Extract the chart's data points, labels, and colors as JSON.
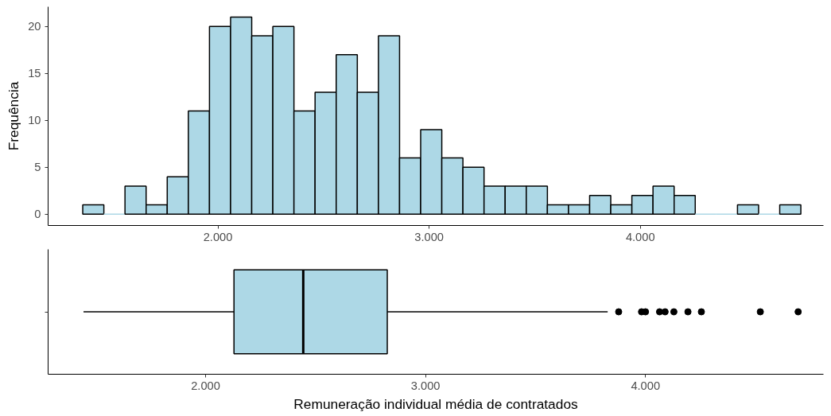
{
  "chart_data": [
    {
      "type": "histogram",
      "ylabel": "Frequência",
      "color": "#add8e6",
      "bins": [
        1360,
        1460,
        1560,
        1660,
        1760,
        1860,
        1960,
        2060,
        2160,
        2260,
        2360,
        2460,
        2560,
        2660,
        2760,
        2860,
        2960,
        3060,
        3160,
        3260,
        3360,
        3460,
        3560,
        3660,
        3760,
        3860,
        3960,
        4060,
        4160,
        4260,
        4360,
        4460,
        4560,
        4660,
        4760
      ],
      "values": [
        1,
        0,
        3,
        1,
        4,
        11,
        20,
        21,
        19,
        20,
        11,
        13,
        17,
        13,
        19,
        6,
        9,
        6,
        5,
        3,
        3,
        3,
        1,
        1,
        2,
        1,
        2,
        3,
        2,
        0,
        0,
        1,
        0,
        1
      ],
      "xlim": [
        1196,
        4867
      ],
      "xticks": [
        {
          "value": 2000,
          "label": "2.000"
        },
        {
          "value": 3000,
          "label": "3.000"
        },
        {
          "value": 4000,
          "label": "4.000"
        }
      ],
      "ylim": [
        -1.2,
        22.1
      ],
      "yticks": [
        0,
        5,
        10,
        15,
        20
      ],
      "grid": false
    },
    {
      "type": "box",
      "orientation": "horizontal",
      "xlabel": "Remuneração individual média de contratados",
      "color": "#add8e6",
      "categories": [
        null
      ],
      "boxes": [
        {
          "low": 1445,
          "q1": 2129,
          "median": 2444,
          "q3": 2826,
          "high": 3828,
          "outliers": [
            3878,
            3982,
            4000,
            4064,
            4089,
            4129,
            4193,
            4254,
            4522,
            4694
          ]
        }
      ],
      "xlim": [
        1284,
        4809
      ],
      "xticks": [
        {
          "value": 2000,
          "label": "2.000"
        },
        {
          "value": 3000,
          "label": "3.000"
        },
        {
          "value": 4000,
          "label": "4.000"
        }
      ],
      "grid": false
    }
  ]
}
